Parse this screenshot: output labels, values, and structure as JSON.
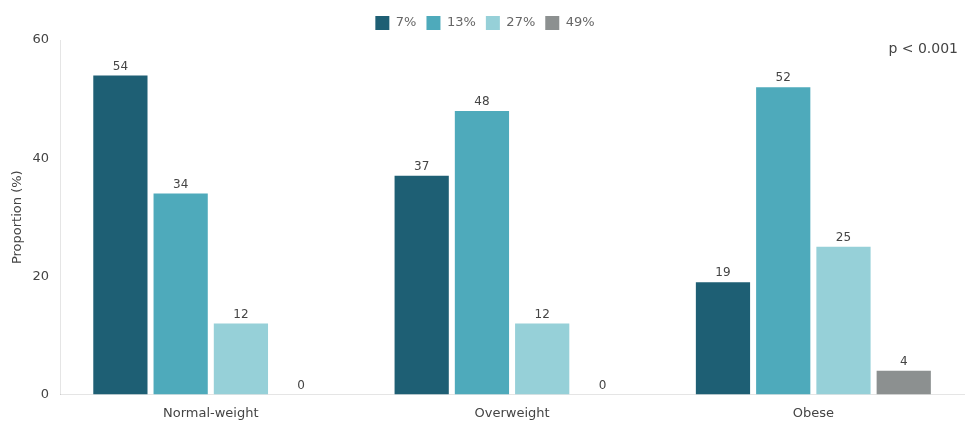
{
  "chart_data": {
    "type": "bar",
    "categories": [
      "Normal-weight",
      "Overweight",
      "Obese"
    ],
    "series": [
      {
        "name": "7%",
        "color": "#1e5f74",
        "values": [
          54,
          37,
          19
        ]
      },
      {
        "name": "13%",
        "color": "#4eaabb",
        "values": [
          34,
          48,
          52
        ]
      },
      {
        "name": "27%",
        "color": "#96d0d8",
        "values": [
          12,
          12,
          25
        ]
      },
      {
        "name": "49%",
        "color": "#8c9090",
        "values": [
          0,
          0,
          4
        ]
      }
    ],
    "ylabel": "Proportion (%)",
    "ylim": [
      0,
      60
    ],
    "yticks": [
      0,
      20,
      40,
      60
    ],
    "annotation": "p < 0.001",
    "grid": false,
    "legend": "top",
    "data_labels": true
  }
}
